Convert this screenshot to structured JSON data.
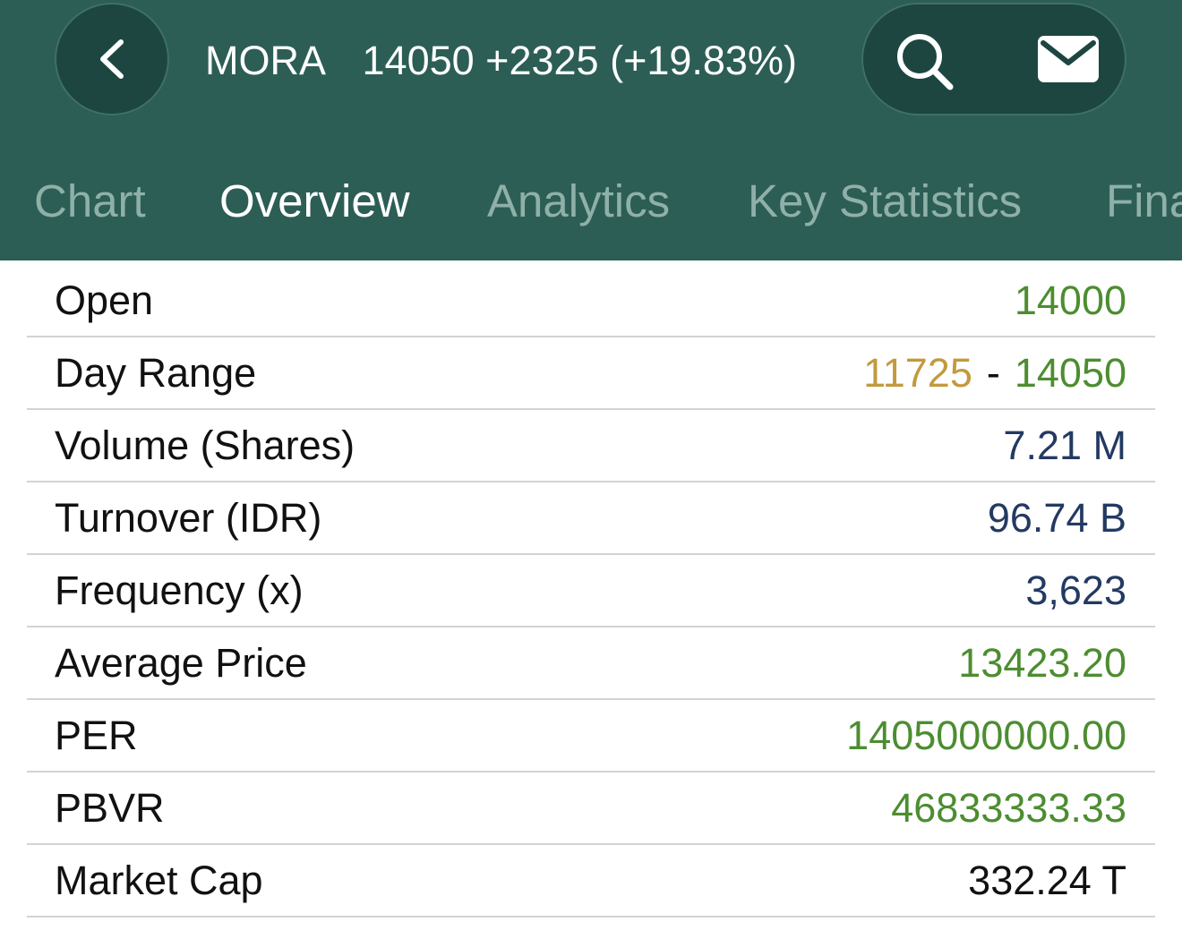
{
  "header": {
    "symbol": "MORA",
    "price": "14050",
    "change": "+2325",
    "change_pct": "(+19.83%)",
    "back_icon": "chevron-left-icon",
    "search_icon": "search-icon",
    "mail_icon": "mail-icon"
  },
  "tabs": [
    {
      "label": "Chart",
      "active": false
    },
    {
      "label": "Overview",
      "active": true
    },
    {
      "label": "Analytics",
      "active": false
    },
    {
      "label": "Key Statistics",
      "active": false
    },
    {
      "label": "Fina",
      "active": false
    }
  ],
  "overview": {
    "open": {
      "label": "Open",
      "value": "14000"
    },
    "day_range": {
      "label": "Day Range",
      "low": "11725",
      "separator": "-",
      "high": "14050"
    },
    "volume": {
      "label": "Volume (Shares)",
      "value": "7.21 M"
    },
    "turnover": {
      "label": "Turnover (IDR)",
      "value": "96.74 B"
    },
    "frequency": {
      "label": "Frequency (x)",
      "value": "3,623"
    },
    "average_price": {
      "label": "Average Price",
      "value": "13423.20"
    },
    "per": {
      "label": "PER",
      "value": "1405000000.00"
    },
    "pbvr": {
      "label": "PBVR",
      "value": "46833333.33"
    },
    "market_cap": {
      "label": "Market Cap",
      "value": "332.24 T"
    }
  },
  "colors": {
    "header_bg": "#2c5e55",
    "button_bg": "#1d4640",
    "up_green": "#4c8d30",
    "low_orange": "#c29a3d",
    "neutral_navy": "#233a62"
  }
}
